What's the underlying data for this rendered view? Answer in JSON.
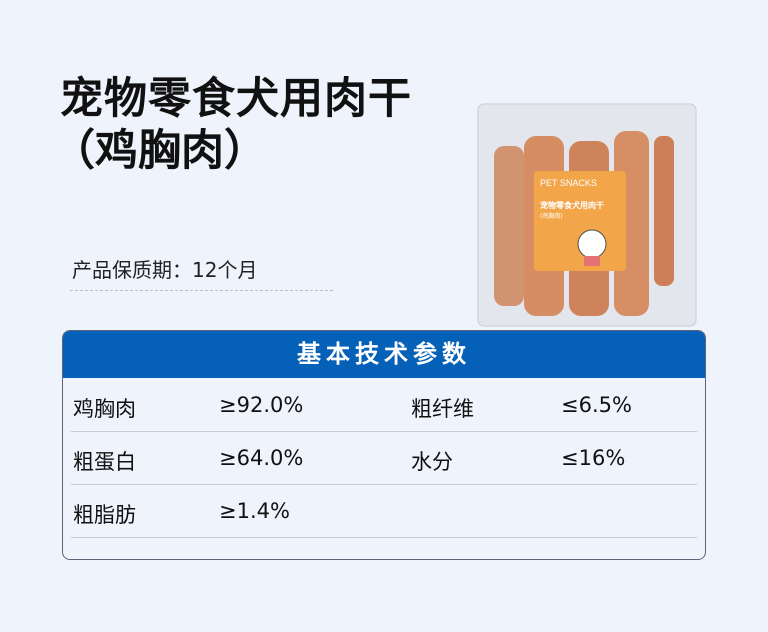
{
  "title_line1": "宠物零食犬用肉干",
  "title_line2": "（鸡胸肉）",
  "shelf_life": {
    "label": "产品保质期：",
    "value": "12个月"
  },
  "package": {
    "brand": "PET SNACKS",
    "name": "宠物零食犬用肉干",
    "variant": "(鸡胸肉)",
    "label_color": "#f0962a"
  },
  "table": {
    "header": "基本技术参数",
    "header_color": "#0560b8",
    "rows": [
      [
        {
          "label": "鸡胸肉",
          "value": "≥92.0%"
        },
        {
          "label": "粗纤维",
          "value": "≤6.5%"
        }
      ],
      [
        {
          "label": "粗蛋白",
          "value": "≥64.0%"
        },
        {
          "label": "水分",
          "value": "≤16%"
        }
      ],
      [
        {
          "label": "粗脂肪",
          "value": "≥1.4%"
        }
      ]
    ]
  }
}
